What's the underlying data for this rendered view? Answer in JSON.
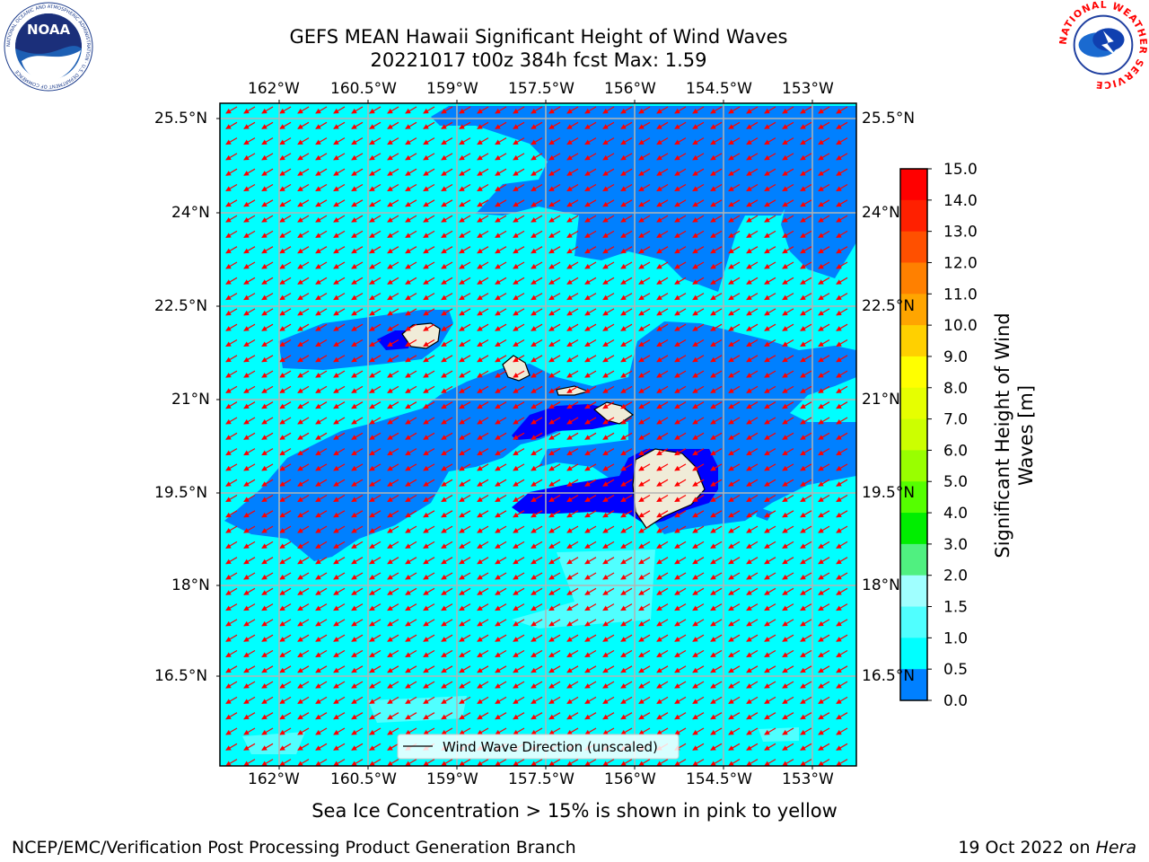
{
  "title": {
    "line1": "GEFS MEAN Hawaii Significant Height of Wind Waves",
    "line2": "20221017 t00z 384h fcst   Max: 1.59"
  },
  "lon_ticks": [
    "162°W",
    "160.5°W",
    "159°W",
    "157.5°W",
    "156°W",
    "154.5°W",
    "153°W"
  ],
  "lat_ticks": [
    "25.5°N",
    "24°N",
    "22.5°N",
    "21°N",
    "19.5°N",
    "18°N",
    "16.5°N"
  ],
  "legend": {
    "label": "Wind Wave Direction (unscaled)"
  },
  "colorbar": {
    "label_line1": "Significant Height of Wind",
    "label_line2": "Waves [m]",
    "ticks": [
      "15.0",
      "14.0",
      "13.0",
      "12.0",
      "11.0",
      "10.0",
      "9.0",
      "8.0",
      "7.0",
      "6.0",
      "5.0",
      "4.0",
      "3.0",
      "2.0",
      "1.5",
      "1.0",
      "0.5",
      "0.0"
    ],
    "colors": [
      "#ff0000",
      "#ff2000",
      "#ff5000",
      "#ff8000",
      "#ffa500",
      "#ffd000",
      "#ffff00",
      "#e6ff00",
      "#ccff00",
      "#99ff00",
      "#55ff00",
      "#00ee00",
      "#50f080",
      "#a0ffff",
      "#50ffff",
      "#00ffff",
      "#0080ff",
      "#0000ff"
    ]
  },
  "notes": {
    "sea_ice": "Sea Ice Concentration > 15% is shown in pink to yellow"
  },
  "footer": {
    "left": "NCEP/EMC/Verification Post Processing Product Generation Branch",
    "right_prefix": "19 Oct 2022 on ",
    "right_host": "Hera"
  },
  "logos": {
    "noaa_text": "NOAA",
    "noaa_ring": "NATIONAL OCEANIC AND ATMOSPHERIC ADMINISTRATION · U.S. DEPARTMENT OF COMMERCE",
    "nws_ring": "NATIONAL WEATHER SERVICE"
  },
  "colors": {
    "ocean_cyan": "#00ffff",
    "wave_mid": "#0080ff",
    "wave_low": "#0000ff",
    "land": "#f0ecd8",
    "arrow": "#ff0000",
    "grid": "#b4b4b4"
  }
}
